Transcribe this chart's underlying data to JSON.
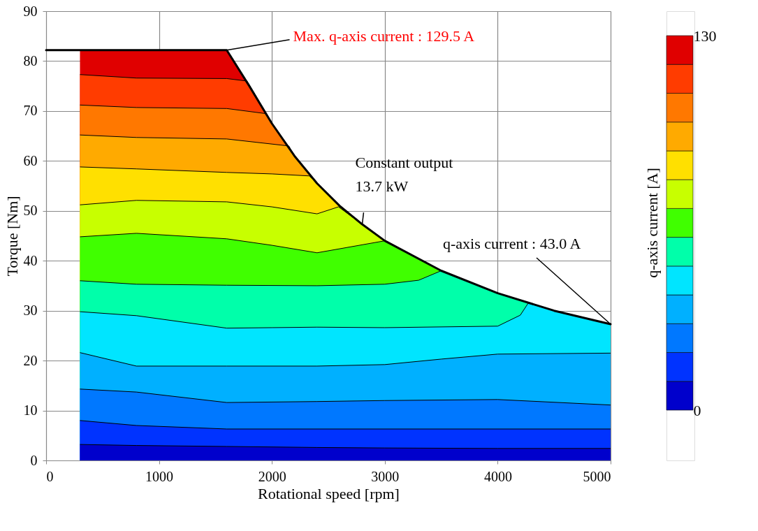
{
  "chart_data": {
    "type": "area",
    "xlabel": "Rotational speed [rpm]",
    "ylabel": "Torque [Nm]",
    "clabel": "q-axis current [A]",
    "xlim": [
      0,
      5000
    ],
    "xticks": [
      0,
      1000,
      2000,
      3000,
      4000,
      5000
    ],
    "ylim": [
      0,
      90
    ],
    "yticks": [
      0,
      10,
      20,
      30,
      40,
      50,
      60,
      70,
      80,
      90
    ],
    "grid": true,
    "clim": [
      0,
      130
    ],
    "cticks": [
      0,
      130
    ],
    "series": [
      {
        "color": "#e00000",
        "x": [
          300,
          1600,
          1800,
          2000,
          2200,
          2400,
          2600,
          2800,
          3000,
          3500,
          4000,
          4500,
          5000
        ],
        "values": [
          82.2,
          82.2,
          75,
          67.5,
          61,
          55.5,
          51,
          47.3,
          44,
          38,
          33.5,
          30,
          27.3
        ]
      },
      {
        "color": "#ff3c00",
        "x": [
          300,
          800,
          1600,
          1780,
          2000,
          2200,
          2400,
          2600,
          2800,
          3000,
          3500,
          4000,
          4500,
          5000
        ],
        "values": [
          77.3,
          76.6,
          76.5,
          76.0,
          67.5,
          61,
          55.5,
          51,
          47.3,
          44,
          38,
          33.5,
          30,
          27.3
        ]
      },
      {
        "color": "#ff7800",
        "x": [
          300,
          800,
          1600,
          1940,
          2000,
          2200,
          2400,
          2600,
          2800,
          3000,
          3500,
          4000,
          4500,
          5000
        ],
        "values": [
          71.2,
          70.7,
          70.5,
          69.5,
          67.5,
          61,
          55.5,
          51,
          47.3,
          44,
          38,
          33.5,
          30,
          27.3
        ]
      },
      {
        "color": "#ffaa00",
        "x": [
          300,
          800,
          1600,
          2150,
          2200,
          2400,
          2600,
          2800,
          3000,
          3500,
          4000,
          4500,
          5000
        ],
        "values": [
          65.2,
          64.7,
          64.4,
          63.0,
          61,
          55.5,
          51,
          47.3,
          44,
          38,
          33.5,
          30,
          27.3
        ]
      },
      {
        "color": "#ffe000",
        "x": [
          300,
          800,
          1600,
          2000,
          2330,
          2400,
          2600,
          2800,
          3000,
          3500,
          4000,
          4500,
          5000
        ],
        "values": [
          58.8,
          58.4,
          57.7,
          57.4,
          57.0,
          55.5,
          51,
          47.3,
          44,
          38,
          33.5,
          30,
          27.3
        ]
      },
      {
        "color": "#c8ff00",
        "x": [
          300,
          800,
          1600,
          2000,
          2400,
          2590,
          2800,
          3000,
          3500,
          4000,
          4500,
          5000
        ],
        "values": [
          51.2,
          52.1,
          51.8,
          50.8,
          49.4,
          50.8,
          47.3,
          44,
          38,
          33.5,
          30,
          27.3
        ]
      },
      {
        "color": "#40ff00",
        "x": [
          300,
          800,
          1600,
          2000,
          2400,
          3000,
          3500,
          4000,
          4500,
          5000
        ],
        "values": [
          44.8,
          45.5,
          44.4,
          43.1,
          41.6,
          44,
          38,
          33.5,
          30,
          27.3
        ]
      },
      {
        "color": "#00ffaa",
        "x": [
          300,
          800,
          1600,
          2400,
          3000,
          3300,
          3500,
          4000,
          4500,
          5000
        ],
        "values": [
          36.0,
          35.3,
          35.1,
          35.0,
          35.3,
          36.1,
          38,
          33.5,
          30,
          27.3
        ]
      },
      {
        "color": "#00e5ff",
        "x": [
          300,
          800,
          1600,
          2000,
          2400,
          3000,
          4000,
          4200,
          4270,
          4500,
          5000
        ],
        "values": [
          29.8,
          29.0,
          26.5,
          26.6,
          26.7,
          26.6,
          26.9,
          29.1,
          31.5,
          30,
          27.3
        ]
      },
      {
        "color": "#00b0ff",
        "x": [
          300,
          800,
          1600,
          2400,
          3000,
          3500,
          4000,
          5000
        ],
        "values": [
          21.6,
          18.9,
          18.9,
          18.9,
          19.2,
          20.3,
          21.3,
          21.5
        ]
      },
      {
        "color": "#0078ff",
        "x": [
          300,
          800,
          1600,
          2400,
          3000,
          4000,
          5000
        ],
        "values": [
          14.3,
          13.7,
          11.6,
          11.8,
          12.0,
          12.2,
          11.1
        ]
      },
      {
        "color": "#0033ff",
        "x": [
          300,
          800,
          1600,
          5000
        ],
        "values": [
          8.0,
          7.0,
          6.3,
          6.3
        ]
      },
      {
        "color": "#0000cc",
        "x": [
          300,
          800,
          1600,
          2400,
          3000,
          4000,
          5000
        ],
        "values": [
          3.2,
          3.0,
          2.8,
          2.6,
          2.5,
          2.4,
          2.4
        ]
      },
      {
        "type": "line",
        "color": "#000000",
        "x": [
          0,
          1600,
          1800,
          2000,
          2200,
          2400,
          2600,
          2800,
          3000,
          3500,
          4000,
          4500,
          5000
        ],
        "values": [
          82.2,
          82.2,
          75,
          67.5,
          61,
          55.5,
          51,
          47.3,
          44,
          38,
          33.5,
          30,
          27.3
        ]
      }
    ],
    "annotations": [
      {
        "text": "Max. q-axis current : 129.5 A",
        "x": 1600,
        "y": 82.2
      },
      {
        "text": "Constant output\n13.7 kW",
        "x": 2800,
        "y": 47.3
      },
      {
        "text": "q-axis current  : 43.0 A",
        "x": 5000,
        "y": 27.3
      }
    ]
  }
}
